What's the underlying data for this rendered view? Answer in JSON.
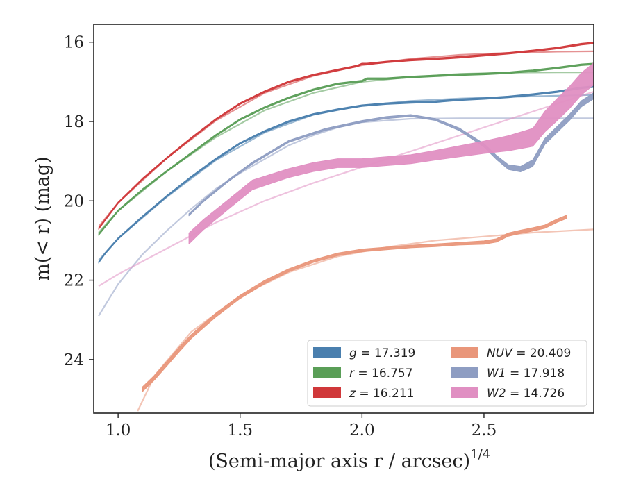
{
  "chart_data": {
    "type": "line",
    "xlabel": "(Semi-major axis r / arcsec)",
    "xlabel_exponent": "1/4",
    "ylabel": "m(< r) (mag)",
    "xlim": [
      0.9,
      2.95
    ],
    "ylim": [
      25.35,
      15.55
    ],
    "y_inverted": true,
    "xticks": [
      1.0,
      1.5,
      2.0,
      2.5
    ],
    "xtick_labels": [
      "1.0",
      "1.5",
      "2.0",
      "2.5"
    ],
    "yticks": [
      16,
      18,
      20,
      22,
      24
    ],
    "ytick_labels": [
      "16",
      "18",
      "20",
      "22",
      "24"
    ],
    "grid": false,
    "legend_position": "lower-right",
    "series": [
      {
        "name": "g = 17.319",
        "var": "g",
        "val": "= 17.319",
        "color": "#4a7fae",
        "x": [
          0.92,
          0.95,
          1.0,
          1.1,
          1.2,
          1.3,
          1.4,
          1.5,
          1.6,
          1.7,
          1.8,
          1.9,
          2.0,
          2.1,
          2.2,
          2.3,
          2.4,
          2.5,
          2.6,
          2.7,
          2.8,
          2.9,
          2.95
        ],
        "y": [
          21.55,
          21.3,
          20.95,
          20.4,
          19.88,
          19.4,
          18.95,
          18.55,
          18.25,
          18.0,
          17.82,
          17.7,
          17.6,
          17.55,
          17.52,
          17.5,
          17.45,
          17.42,
          17.38,
          17.32,
          17.25,
          17.15,
          17.12
        ],
        "width": [
          2.5,
          2.5,
          2.5,
          2.5,
          2.5,
          2.5,
          2.5,
          2.5,
          2.5,
          2.5,
          2.5,
          2.5,
          2.5,
          2.5,
          2.5,
          2.5,
          2.5,
          2.5,
          2.5,
          2.5,
          2.5,
          2.5,
          2.5
        ],
        "model": {
          "x": [
            0.92,
            1.0,
            1.2,
            1.4,
            1.6,
            1.8,
            2.0,
            2.2,
            2.4,
            2.6,
            2.8,
            2.95
          ],
          "y": [
            21.5,
            20.95,
            19.9,
            18.98,
            18.28,
            17.83,
            17.6,
            17.48,
            17.42,
            17.38,
            17.35,
            17.33
          ]
        }
      },
      {
        "name": "r = 16.757",
        "var": "r",
        "val": "= 16.757",
        "color": "#5a9e57",
        "x": [
          0.92,
          1.0,
          1.1,
          1.2,
          1.3,
          1.4,
          1.5,
          1.6,
          1.7,
          1.8,
          1.9,
          2.0,
          2.02,
          2.1,
          2.2,
          2.3,
          2.4,
          2.5,
          2.6,
          2.7,
          2.8,
          2.9,
          2.95
        ],
        "y": [
          20.85,
          20.25,
          19.72,
          19.25,
          18.8,
          18.35,
          17.95,
          17.65,
          17.4,
          17.2,
          17.05,
          16.98,
          16.92,
          16.92,
          16.88,
          16.85,
          16.82,
          16.8,
          16.77,
          16.72,
          16.65,
          16.57,
          16.55
        ],
        "width": [
          2.5,
          2.5,
          2.5,
          2.5,
          2.5,
          2.5,
          2.5,
          2.5,
          2.5,
          2.5,
          2.5,
          2.5,
          2.5,
          2.5,
          2.5,
          2.5,
          2.5,
          2.5,
          2.5,
          2.5,
          2.5,
          2.5,
          2.5
        ],
        "model": {
          "x": [
            0.92,
            1.0,
            1.2,
            1.4,
            1.6,
            1.8,
            2.0,
            2.2,
            2.4,
            2.6,
            2.8,
            2.95
          ],
          "y": [
            20.8,
            20.25,
            19.25,
            18.4,
            17.72,
            17.28,
            17.0,
            16.88,
            16.8,
            16.77,
            16.76,
            16.76
          ]
        }
      },
      {
        "name": "z = 16.211",
        "var": "z",
        "val": "= 16.211",
        "color": "#d0383a",
        "x": [
          0.92,
          1.0,
          1.1,
          1.2,
          1.3,
          1.4,
          1.5,
          1.6,
          1.7,
          1.8,
          1.9,
          1.98,
          2.0,
          2.02,
          2.1,
          2.2,
          2.3,
          2.4,
          2.5,
          2.6,
          2.7,
          2.8,
          2.9,
          2.95
        ],
        "y": [
          20.7,
          20.05,
          19.45,
          18.92,
          18.42,
          17.95,
          17.55,
          17.25,
          17.0,
          16.83,
          16.7,
          16.6,
          16.55,
          16.55,
          16.5,
          16.45,
          16.42,
          16.38,
          16.33,
          16.28,
          16.22,
          16.15,
          16.05,
          16.02
        ],
        "width": [
          2.5,
          2.5,
          2.5,
          2.5,
          2.5,
          2.5,
          2.5,
          2.5,
          2.5,
          2.5,
          2.5,
          2.5,
          2.5,
          2.5,
          2.5,
          2.5,
          2.5,
          2.5,
          2.5,
          2.5,
          2.5,
          2.5,
          2.5,
          2.5
        ],
        "model": {
          "x": [
            0.92,
            1.0,
            1.2,
            1.4,
            1.6,
            1.8,
            2.0,
            2.2,
            2.4,
            2.6,
            2.8,
            2.95
          ],
          "y": [
            20.65,
            20.05,
            18.92,
            17.98,
            17.28,
            16.85,
            16.58,
            16.42,
            16.32,
            16.27,
            16.24,
            16.23
          ]
        }
      },
      {
        "name": "NUV = 20.409",
        "var": "NUV",
        "val": "= 20.409",
        "color": "#e9967a",
        "x": [
          1.1,
          1.15,
          1.2,
          1.25,
          1.3,
          1.4,
          1.5,
          1.6,
          1.7,
          1.8,
          1.9,
          2.0,
          2.1,
          2.2,
          2.3,
          2.4,
          2.5,
          2.55,
          2.6,
          2.65,
          2.7,
          2.75,
          2.8,
          2.84
        ],
        "y": [
          24.75,
          24.45,
          24.1,
          23.75,
          23.42,
          22.88,
          22.42,
          22.05,
          21.75,
          21.52,
          21.35,
          21.25,
          21.2,
          21.15,
          21.12,
          21.08,
          21.05,
          21.0,
          20.85,
          20.78,
          20.72,
          20.65,
          20.5,
          20.4
        ],
        "width": [
          7,
          7,
          7,
          7,
          6,
          6,
          5,
          5,
          4.5,
          4,
          4,
          4,
          4,
          4,
          4,
          4,
          5,
          5,
          5,
          5,
          5,
          5,
          5,
          5
        ],
        "model": {
          "x": [
            1.08,
            1.15,
            1.3,
            1.5,
            1.7,
            1.9,
            2.1,
            2.3,
            2.5,
            2.7,
            2.95
          ],
          "y": [
            25.3,
            24.4,
            23.3,
            22.4,
            21.8,
            21.4,
            21.17,
            21.0,
            20.9,
            20.8,
            20.72
          ]
        }
      },
      {
        "name": "W1 = 17.918",
        "var": "W1",
        "val": "= 17.918",
        "color": "#8e9dc2",
        "x": [
          1.29,
          1.35,
          1.45,
          1.55,
          1.7,
          1.85,
          2.0,
          2.1,
          2.2,
          2.3,
          2.4,
          2.5,
          2.55,
          2.6,
          2.65,
          2.7,
          2.75,
          2.8,
          2.85,
          2.9,
          2.95
        ],
        "y": [
          20.35,
          20.0,
          19.5,
          19.05,
          18.5,
          18.2,
          18.0,
          17.9,
          17.85,
          17.95,
          18.2,
          18.6,
          18.9,
          19.15,
          19.2,
          19.05,
          18.5,
          18.2,
          17.9,
          17.55,
          17.35
        ],
        "width": [
          3,
          3,
          3,
          3,
          3,
          3,
          3,
          3,
          3,
          3,
          4,
          5,
          6,
          7,
          8,
          10,
          9,
          9,
          9,
          9,
          9
        ],
        "model": {
          "x": [
            0.92,
            1.0,
            1.1,
            1.2,
            1.3,
            1.4,
            1.5,
            1.6,
            1.7,
            1.8,
            1.9,
            2.0,
            2.2,
            2.4,
            2.6,
            2.8,
            2.95
          ],
          "y": [
            22.9,
            22.1,
            21.35,
            20.75,
            20.2,
            19.7,
            19.3,
            18.95,
            18.6,
            18.35,
            18.15,
            18.02,
            17.93,
            17.92,
            17.92,
            17.92,
            17.92
          ]
        }
      },
      {
        "name": "W2 = 14.726",
        "var": "W2",
        "val": "= 14.726",
        "color": "#e08fc2",
        "x": [
          1.29,
          1.35,
          1.45,
          1.55,
          1.7,
          1.8,
          1.9,
          2.0,
          2.1,
          2.2,
          2.3,
          2.4,
          2.5,
          2.6,
          2.7,
          2.75,
          2.8,
          2.85,
          2.9,
          2.95
        ],
        "y": [
          20.95,
          20.6,
          20.1,
          19.6,
          19.3,
          19.15,
          19.05,
          19.05,
          19.0,
          18.95,
          18.85,
          18.75,
          18.65,
          18.55,
          18.4,
          18.0,
          17.7,
          17.4,
          17.05,
          16.8
        ],
        "width": [
          16,
          15,
          14,
          14,
          13,
          13,
          13,
          13,
          13,
          13,
          14,
          16,
          18,
          22,
          26,
          30,
          32,
          32,
          32,
          32
        ],
        "model": {
          "x": [
            0.92,
            1.0,
            1.2,
            1.4,
            1.6,
            1.8,
            2.0,
            2.2,
            2.4,
            2.6,
            2.8,
            2.95
          ],
          "y": [
            22.15,
            21.85,
            21.2,
            20.55,
            20.0,
            19.55,
            19.15,
            18.75,
            18.35,
            17.95,
            17.55,
            17.25
          ]
        }
      }
    ]
  }
}
